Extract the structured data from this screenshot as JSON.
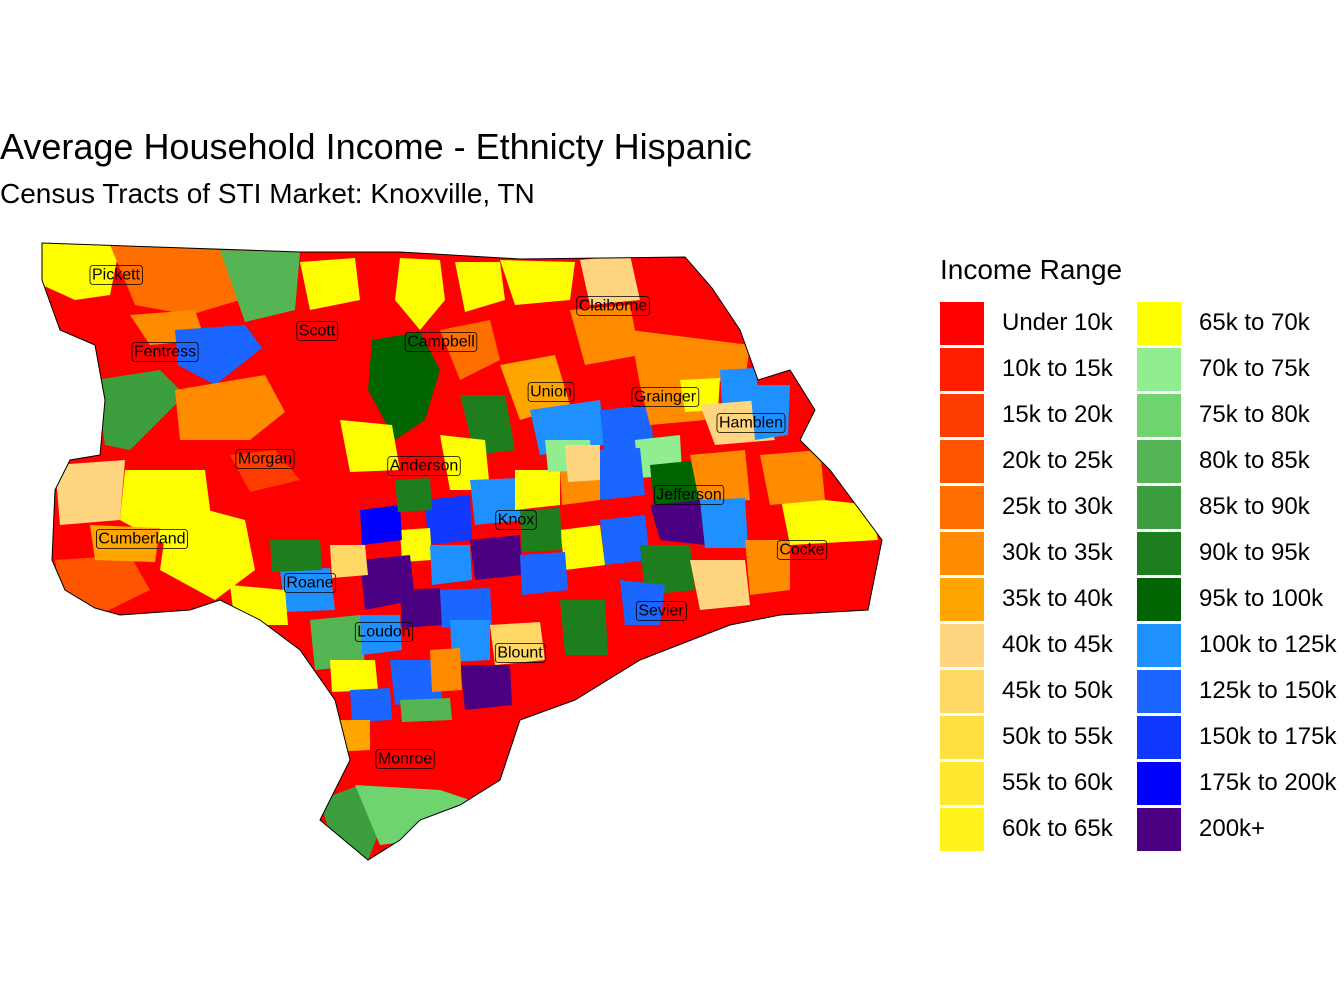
{
  "title": "Average Household Income - Ethnicty Hispanic",
  "subtitle": "Census Tracts of STI Market: Knoxville, TN",
  "legend": {
    "title": "Income Range",
    "items": [
      {
        "label": "Under 10k",
        "color": "#FF0000"
      },
      {
        "label": "10k to 15k",
        "color": "#FF1E00"
      },
      {
        "label": "15k to 20k",
        "color": "#FF3C00"
      },
      {
        "label": "20k to 25k",
        "color": "#FF5500"
      },
      {
        "label": "25k to 30k",
        "color": "#FF6E00"
      },
      {
        "label": "30k to 35k",
        "color": "#FF8C00"
      },
      {
        "label": "35k to 40k",
        "color": "#FFA500"
      },
      {
        "label": "40k to 45k",
        "color": "#FFD580"
      },
      {
        "label": "45k to 50k",
        "color": "#FFD866"
      },
      {
        "label": "50k to 55k",
        "color": "#FFE040"
      },
      {
        "label": "55k to 60k",
        "color": "#FFE830"
      },
      {
        "label": "60k to 65k",
        "color": "#FFF21A"
      },
      {
        "label": "65k to 70k",
        "color": "#FFFF00"
      },
      {
        "label": "70k to 75k",
        "color": "#90EE90"
      },
      {
        "label": "75k to 80k",
        "color": "#6FD46F"
      },
      {
        "label": "80k to 85k",
        "color": "#55B555"
      },
      {
        "label": "85k to 90k",
        "color": "#3C9E3C"
      },
      {
        "label": "90k to 95k",
        "color": "#1E7E1E"
      },
      {
        "label": "95k to 100k",
        "color": "#006400"
      },
      {
        "label": "100k to 125k",
        "color": "#1E90FF"
      },
      {
        "label": "125k to 150k",
        "color": "#1A66FF"
      },
      {
        "label": "150k to 175k",
        "color": "#1038FF"
      },
      {
        "label": "175k to 200k",
        "color": "#0000FF"
      },
      {
        "label": "200k+",
        "color": "#4B0082"
      }
    ]
  },
  "counties": [
    {
      "name": "Pickett"
    },
    {
      "name": "Scott"
    },
    {
      "name": "Campbell"
    },
    {
      "name": "Claiborne"
    },
    {
      "name": "Fentress"
    },
    {
      "name": "Union"
    },
    {
      "name": "Grainger"
    },
    {
      "name": "Hamblen"
    },
    {
      "name": "Morgan"
    },
    {
      "name": "Anderson"
    },
    {
      "name": "Jefferson"
    },
    {
      "name": "Knox"
    },
    {
      "name": "Cumberland"
    },
    {
      "name": "Cocke"
    },
    {
      "name": "Roane"
    },
    {
      "name": "Sevier"
    },
    {
      "name": "Loudon"
    },
    {
      "name": "Blount"
    },
    {
      "name": "Monroe"
    }
  ]
}
